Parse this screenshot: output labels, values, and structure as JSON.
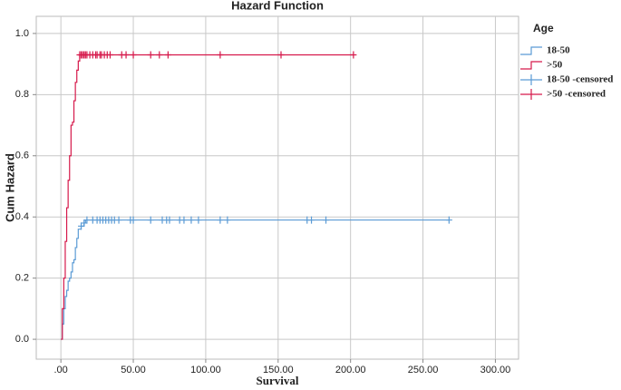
{
  "chart_data": {
    "type": "line",
    "step": true,
    "title": "Hazard Function",
    "x_label": "Survival",
    "y_label": "Cum Hazard",
    "legend_title": "Age",
    "legend_position": "right",
    "grid": true,
    "xlim": [
      -17,
      316
    ],
    "ylim": [
      -0.065,
      1.056
    ],
    "xticks": [
      {
        "value": 0,
        "label": ".00"
      },
      {
        "value": 50,
        "label": "50.00"
      },
      {
        "value": 100,
        "label": "100.00"
      },
      {
        "value": 150,
        "label": "150.00"
      },
      {
        "value": 200,
        "label": "200.00"
      },
      {
        "value": 250,
        "label": "250.00"
      },
      {
        "value": 300,
        "label": "300.00"
      }
    ],
    "yticks": [
      {
        "value": 0,
        "label": "0.0"
      },
      0.2,
      0.4,
      0.6,
      0.8,
      {
        "value": 1,
        "label": "1.0"
      }
    ],
    "series": [
      {
        "name": "18-50",
        "color": "#5b9bd5",
        "mark": "step",
        "x": [
          0,
          1,
          2,
          3,
          4,
          5,
          6,
          7,
          8,
          9,
          10,
          11,
          12,
          14,
          16,
          17,
          268
        ],
        "values": [
          0,
          0.05,
          0.1,
          0.14,
          0.16,
          0.19,
          0.2,
          0.22,
          0.25,
          0.26,
          0.3,
          0.33,
          0.36,
          0.37,
          0.38,
          0.39,
          0.39
        ]
      },
      {
        "name": ">50",
        "color": "#d6194b",
        "mark": "step",
        "x": [
          0,
          1,
          2,
          3,
          4,
          5,
          6,
          7,
          8,
          9,
          10,
          11,
          12,
          13,
          202
        ],
        "values": [
          0,
          0.1,
          0.2,
          0.32,
          0.43,
          0.52,
          0.6,
          0.7,
          0.71,
          0.78,
          0.84,
          0.88,
          0.91,
          0.93,
          0.93
        ]
      },
      {
        "name": "18-50 -censored",
        "color": "#5b9bd5",
        "mark": "censor",
        "x": [
          14,
          16,
          18,
          22,
          25,
          27,
          29,
          31,
          33,
          35,
          37,
          40,
          48,
          50,
          62,
          70,
          73,
          75,
          82,
          85,
          90,
          95,
          110,
          115,
          170,
          173,
          183,
          268
        ],
        "values": [
          0.37,
          0.38,
          0.39,
          0.39,
          0.39,
          0.39,
          0.39,
          0.39,
          0.39,
          0.39,
          0.39,
          0.39,
          0.39,
          0.39,
          0.39,
          0.39,
          0.39,
          0.39,
          0.39,
          0.39,
          0.39,
          0.39,
          0.39,
          0.39,
          0.39,
          0.39,
          0.39,
          0.39
        ]
      },
      {
        "name": ">50 -censored",
        "color": "#d6194b",
        "mark": "censor",
        "x": [
          13,
          14,
          15,
          16,
          17,
          18,
          20,
          22,
          24,
          25,
          27,
          28,
          30,
          32,
          34,
          42,
          45,
          50,
          62,
          68,
          74,
          110,
          152,
          202
        ],
        "values": [
          0.93,
          0.93,
          0.93,
          0.93,
          0.93,
          0.93,
          0.93,
          0.93,
          0.93,
          0.93,
          0.93,
          0.93,
          0.93,
          0.93,
          0.93,
          0.93,
          0.93,
          0.93,
          0.93,
          0.93,
          0.93,
          0.93,
          0.93,
          0.93
        ]
      }
    ]
  }
}
